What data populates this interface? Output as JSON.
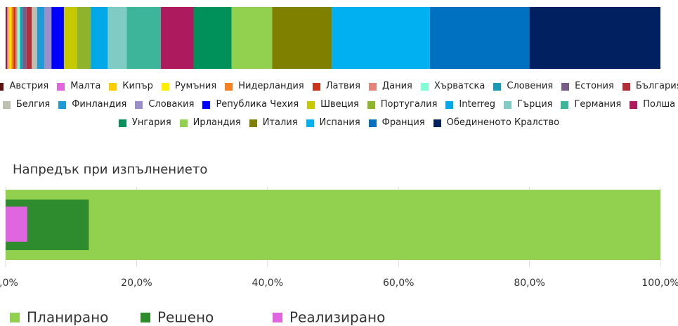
{
  "chart_data": [
    {
      "type": "stacked-bar-horizontal",
      "xlim": [
        0,
        100
      ],
      "series": [
        {
          "name": "Австрия",
          "color": "#5c0f0f",
          "values": [
            0.2
          ]
        },
        {
          "name": "Малта",
          "color": "#e066e0",
          "values": [
            0.2
          ]
        },
        {
          "name": "Кипър",
          "color": "#ffcc00",
          "values": [
            0.3
          ]
        },
        {
          "name": "Румъния",
          "color": "#ffee00",
          "values": [
            0.2
          ]
        },
        {
          "name": "Нидерландия",
          "color": "#f58220",
          "values": [
            0.3
          ]
        },
        {
          "name": "Латвия",
          "color": "#c8341c",
          "values": [
            0.3
          ]
        },
        {
          "name": "Дания",
          "color": "#e8857a",
          "values": [
            0.3
          ]
        },
        {
          "name": "Хърватска",
          "color": "#80ffd4",
          "values": [
            0.4
          ]
        },
        {
          "name": "Словения",
          "color": "#1a9bb5",
          "values": [
            0.4
          ]
        },
        {
          "name": "Естония",
          "color": "#7a5c8a",
          "values": [
            0.6
          ]
        },
        {
          "name": "България",
          "color": "#b0303a",
          "values": [
            0.8
          ]
        },
        {
          "name": "Белгия",
          "color": "#bfbfb0",
          "values": [
            0.8
          ]
        },
        {
          "name": "Финландия",
          "color": "#1e9ad6",
          "values": [
            1.1
          ]
        },
        {
          "name": "Словакия",
          "color": "#9b8fc9",
          "values": [
            1.1
          ]
        },
        {
          "name": "Република Чехия",
          "color": "#0000ff",
          "values": [
            1.9
          ]
        },
        {
          "name": "Швеция",
          "color": "#c8c800",
          "values": [
            2.0
          ]
        },
        {
          "name": "Португалия",
          "color": "#8fb32a",
          "values": [
            2.1
          ]
        },
        {
          "name": "Interreg",
          "color": "#00a8e8",
          "values": [
            2.6
          ]
        },
        {
          "name": "Гърция",
          "color": "#80cbc4",
          "values": [
            2.9
          ]
        },
        {
          "name": "Германия",
          "color": "#3cb59b",
          "values": [
            5.2
          ]
        },
        {
          "name": "Полша",
          "color": "#ad1a5e",
          "values": [
            5.0
          ]
        },
        {
          "name": "Унгария",
          "color": "#00915a",
          "values": [
            5.8
          ]
        },
        {
          "name": "Ирландия",
          "color": "#92d050",
          "values": [
            6.2
          ]
        },
        {
          "name": "Италия",
          "color": "#808000",
          "values": [
            9.1
          ]
        },
        {
          "name": "Испания",
          "color": "#00b0f0",
          "values": [
            15.0
          ]
        },
        {
          "name": "Франция",
          "color": "#0070c0",
          "values": [
            15.2
          ]
        },
        {
          "name": "Обединеното Кралство",
          "color": "#002060",
          "values": [
            20.0
          ]
        }
      ]
    },
    {
      "type": "overlap-bar-horizontal",
      "title": "Напредък при изпълнението",
      "xlim": [
        0,
        100
      ],
      "xticks": [
        {
          "value": 0,
          "label": "0,0%"
        },
        {
          "value": 20,
          "label": "20,0%"
        },
        {
          "value": 40,
          "label": "40,0%"
        },
        {
          "value": 60,
          "label": "60,0%"
        },
        {
          "value": 80,
          "label": "80,0%"
        },
        {
          "value": 100,
          "label": "100,0%"
        }
      ],
      "series": [
        {
          "name": "Планирано",
          "color": "#92d050",
          "values": [
            100
          ]
        },
        {
          "name": "Решено",
          "color": "#2e8b2e",
          "values": [
            12.7
          ]
        },
        {
          "name": "Реализирано",
          "color": "#e066e0",
          "values": [
            3.3
          ]
        }
      ]
    }
  ]
}
